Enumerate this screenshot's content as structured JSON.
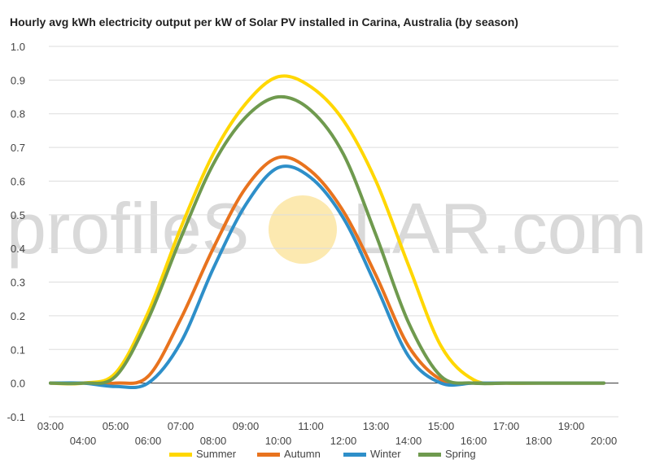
{
  "chart_data": {
    "type": "line",
    "title": "Hourly avg kWh electricity output per kW of Solar PV installed in Carina, Australia (by season)",
    "xlabel": "",
    "ylabel": "",
    "x": [
      "03:00",
      "04:00",
      "05:00",
      "06:00",
      "07:00",
      "08:00",
      "09:00",
      "10:00",
      "11:00",
      "12:00",
      "13:00",
      "14:00",
      "15:00",
      "16:00",
      "17:00",
      "18:00",
      "19:00",
      "20:00"
    ],
    "ylim": [
      -0.1,
      1.0
    ],
    "yticks": [
      "1.0",
      "0.9",
      "0.8",
      "0.7",
      "0.6",
      "0.5",
      "0.4",
      "0.3",
      "0.2",
      "0.1",
      "0.0",
      "-0.1"
    ],
    "grid": true,
    "legend_position": "bottom",
    "series": [
      {
        "name": "Summer",
        "color": "#ffd700",
        "values": [
          0.0,
          0.0,
          0.03,
          0.21,
          0.46,
          0.68,
          0.83,
          0.91,
          0.88,
          0.78,
          0.6,
          0.35,
          0.11,
          0.01,
          0.0,
          0.0,
          0.0,
          0.0
        ]
      },
      {
        "name": "Autumn",
        "color": "#e8731e",
        "values": [
          0.0,
          0.0,
          0.0,
          0.02,
          0.19,
          0.4,
          0.58,
          0.67,
          0.63,
          0.51,
          0.32,
          0.11,
          0.01,
          0.0,
          0.0,
          0.0,
          0.0,
          0.0
        ]
      },
      {
        "name": "Winter",
        "color": "#2e8fc9",
        "values": [
          0.0,
          0.0,
          -0.01,
          0.0,
          0.12,
          0.34,
          0.53,
          0.64,
          0.61,
          0.49,
          0.29,
          0.08,
          0.0,
          0.0,
          0.0,
          0.0,
          0.0,
          0.0
        ]
      },
      {
        "name": "Spring",
        "color": "#6f9a4e",
        "values": [
          0.0,
          0.0,
          0.02,
          0.19,
          0.43,
          0.65,
          0.79,
          0.85,
          0.81,
          0.68,
          0.44,
          0.18,
          0.02,
          0.0,
          0.0,
          0.0,
          0.0,
          0.0
        ]
      }
    ]
  },
  "watermark": {
    "text_left": "profileS",
    "text_right": "LAR.com",
    "sun_color": "#fce9b0"
  }
}
